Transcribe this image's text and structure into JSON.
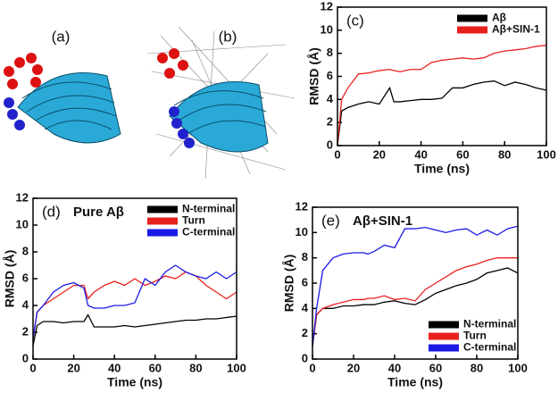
{
  "images": [
    {
      "label": "(a)"
    },
    {
      "label": "(b)"
    }
  ],
  "chart_data": [
    {
      "type": "line",
      "panel_label": "(c)",
      "xlabel": "Time (ns)",
      "ylabel": "RMSD (Å)",
      "x": [
        0,
        2,
        5,
        10,
        15,
        20,
        25,
        27,
        30,
        35,
        40,
        45,
        50,
        55,
        60,
        65,
        70,
        75,
        80,
        85,
        90,
        95,
        100
      ],
      "xlim": [
        0,
        100
      ],
      "ylim": [
        0,
        12
      ],
      "xticks": [
        0,
        20,
        40,
        60,
        80,
        100
      ],
      "yticks": [
        0,
        2,
        4,
        6,
        8,
        10,
        12
      ],
      "legend_position": "upper right",
      "series": [
        {
          "name": "Aβ",
          "color": "#000000",
          "values": [
            0,
            3,
            3.3,
            3.6,
            3.8,
            3.6,
            5,
            3.8,
            3.8,
            3.9,
            4,
            4,
            4.1,
            5,
            5,
            5.3,
            5.5,
            5.6,
            5.2,
            5.5,
            5.3,
            5,
            4.8
          ]
        },
        {
          "name": "Aβ+SIN-1",
          "color": "#e8211c",
          "values": [
            0,
            4,
            5,
            6.2,
            6.3,
            6.5,
            6.6,
            6.5,
            6.4,
            6.6,
            6.6,
            7.2,
            7.4,
            7.5,
            7.6,
            7.5,
            7.6,
            8,
            8.2,
            8.3,
            8.4,
            8.6,
            8.7
          ]
        }
      ]
    },
    {
      "type": "line",
      "panel_label": "(d)",
      "title": "Pure Aβ",
      "xlabel": "Time (ns)",
      "ylabel": "RMSD (Å)",
      "x": [
        0,
        2,
        5,
        10,
        15,
        20,
        25,
        27,
        30,
        35,
        40,
        45,
        50,
        55,
        60,
        65,
        70,
        75,
        80,
        85,
        90,
        95,
        100
      ],
      "xlim": [
        0,
        100
      ],
      "ylim": [
        0,
        12
      ],
      "xticks": [
        0,
        20,
        40,
        60,
        80,
        100
      ],
      "yticks": [
        0,
        2,
        4,
        6,
        8,
        10,
        12
      ],
      "legend_position": "upper right",
      "series": [
        {
          "name": "N-terminal",
          "color": "#000000",
          "values": [
            1,
            2.5,
            2.8,
            2.8,
            2.7,
            2.8,
            2.8,
            3.3,
            2.4,
            2.4,
            2.4,
            2.5,
            2.4,
            2.5,
            2.6,
            2.7,
            2.8,
            2.9,
            2.9,
            3,
            3,
            3.1,
            3.2
          ]
        },
        {
          "name": "Turn",
          "color": "#e8211c",
          "values": [
            1.5,
            3.5,
            4,
            4.5,
            5,
            5.5,
            5.5,
            4.5,
            5,
            5.5,
            5.8,
            5.5,
            6,
            5.5,
            5.8,
            6.2,
            6,
            6.5,
            6.2,
            5.5,
            5,
            4.5,
            5
          ]
        },
        {
          "name": "C-terminal",
          "color": "#1a1ae6",
          "values": [
            1.5,
            3.5,
            4,
            5,
            5.5,
            5.7,
            5.3,
            4,
            3.8,
            3.8,
            4,
            4,
            4.2,
            6,
            5.5,
            6.5,
            7,
            6.5,
            6.2,
            6,
            6.5,
            6,
            6.5
          ]
        }
      ]
    },
    {
      "type": "line",
      "panel_label": "(e)",
      "title": "Aβ+SIN-1",
      "xlabel": "Time (ns)",
      "ylabel": "RMSD (Å)",
      "x": [
        0,
        2,
        5,
        10,
        15,
        20,
        25,
        27,
        30,
        35,
        40,
        45,
        50,
        55,
        60,
        65,
        70,
        75,
        80,
        85,
        90,
        95,
        100
      ],
      "xlim": [
        0,
        100
      ],
      "ylim": [
        0,
        12
      ],
      "xticks": [
        0,
        20,
        40,
        60,
        80,
        100
      ],
      "yticks": [
        0,
        2,
        4,
        6,
        8,
        10,
        12
      ],
      "legend_position": "lower right",
      "series": [
        {
          "name": "N-terminal",
          "color": "#000000",
          "values": [
            1,
            3.5,
            4,
            4,
            4.2,
            4.2,
            4.3,
            4.3,
            4.3,
            4.5,
            4.6,
            4.4,
            4.3,
            4.7,
            5.2,
            5.5,
            5.8,
            6,
            6.3,
            6.8,
            7,
            7.2,
            6.8
          ]
        },
        {
          "name": "Turn",
          "color": "#e8211c",
          "values": [
            1,
            3.5,
            4,
            4.3,
            4.5,
            4.7,
            4.7,
            4.8,
            4.8,
            5,
            4.7,
            4.8,
            4.6,
            5.5,
            6,
            6.5,
            7,
            7.3,
            7.5,
            7.8,
            8,
            8,
            8
          ]
        },
        {
          "name": "C-terminal",
          "color": "#1a1ae6",
          "values": [
            1,
            4,
            7,
            8,
            8.3,
            8.4,
            8.4,
            8.3,
            8.5,
            9,
            8.8,
            10.3,
            10.3,
            10.4,
            10.2,
            10,
            10.2,
            10.3,
            9.8,
            10.2,
            9.8,
            10.3,
            10.5
          ]
        }
      ]
    }
  ]
}
